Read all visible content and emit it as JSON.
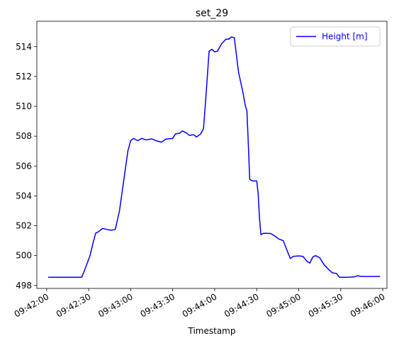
{
  "chart_data": {
    "type": "line",
    "title": "set_29",
    "xlabel": "Timestamp",
    "ylabel": "",
    "x_axis_type": "time",
    "xlim": [
      "09:41:53",
      "09:46:03"
    ],
    "ylim": [
      497.8,
      515.7
    ],
    "x_ticks": [
      "09:42:00",
      "09:42:30",
      "09:43:00",
      "09:43:30",
      "09:44:00",
      "09:44:30",
      "09:45:00",
      "09:45:30",
      "09:46:00"
    ],
    "y_ticks": [
      498,
      500,
      502,
      504,
      506,
      508,
      510,
      512,
      514
    ],
    "grid": false,
    "legend": {
      "placement": "top-right",
      "entries": [
        "Height [m]"
      ]
    },
    "series": [
      {
        "name": "Height [m]",
        "color": "#0000ff",
        "points": [
          [
            "09:42:01",
            498.55
          ],
          [
            "09:42:10",
            498.55
          ],
          [
            "09:42:20",
            498.55
          ],
          [
            "09:42:25",
            498.55
          ],
          [
            "09:42:27",
            499.0
          ],
          [
            "09:42:31",
            500.0
          ],
          [
            "09:42:33",
            500.8
          ],
          [
            "09:42:35",
            501.5
          ],
          [
            "09:42:37",
            501.6
          ],
          [
            "09:42:40",
            501.82
          ],
          [
            "09:42:43",
            501.75
          ],
          [
            "09:42:46",
            501.7
          ],
          [
            "09:42:49",
            501.75
          ],
          [
            "09:42:52",
            503.0
          ],
          [
            "09:42:55",
            505.0
          ],
          [
            "09:42:58",
            507.0
          ],
          [
            "09:43:00",
            507.7
          ],
          [
            "09:43:02",
            507.85
          ],
          [
            "09:43:05",
            507.7
          ],
          [
            "09:43:08",
            507.85
          ],
          [
            "09:43:11",
            507.75
          ],
          [
            "09:43:15",
            507.82
          ],
          [
            "09:43:18",
            507.7
          ],
          [
            "09:43:22",
            507.6
          ],
          [
            "09:43:25",
            507.8
          ],
          [
            "09:43:30",
            507.85
          ],
          [
            "09:43:32",
            508.15
          ],
          [
            "09:43:35",
            508.2
          ],
          [
            "09:43:37",
            508.35
          ],
          [
            "09:43:40",
            508.2
          ],
          [
            "09:43:42",
            508.05
          ],
          [
            "09:43:45",
            508.1
          ],
          [
            "09:43:47",
            507.95
          ],
          [
            "09:43:50",
            508.15
          ],
          [
            "09:43:52",
            508.5
          ],
          [
            "09:43:54",
            511.0
          ],
          [
            "09:43:56",
            513.7
          ],
          [
            "09:43:58",
            513.82
          ],
          [
            "09:44:00",
            513.65
          ],
          [
            "09:44:02",
            513.7
          ],
          [
            "09:44:05",
            514.2
          ],
          [
            "09:44:08",
            514.5
          ],
          [
            "09:44:10",
            514.5
          ],
          [
            "09:44:12",
            514.65
          ],
          [
            "09:44:14",
            514.6
          ],
          [
            "09:44:17",
            512.3
          ],
          [
            "09:44:20",
            511.0
          ],
          [
            "09:44:22",
            510.0
          ],
          [
            "09:44:23",
            509.7
          ],
          [
            "09:44:24",
            507.5
          ],
          [
            "09:44:25",
            505.1
          ],
          [
            "09:44:27",
            505.0
          ],
          [
            "09:44:30",
            505.0
          ],
          [
            "09:44:31",
            504.2
          ],
          [
            "09:44:32",
            502.5
          ],
          [
            "09:44:33",
            501.4
          ],
          [
            "09:44:35",
            501.5
          ],
          [
            "09:44:40",
            501.48
          ],
          [
            "09:44:43",
            501.3
          ],
          [
            "09:44:46",
            501.1
          ],
          [
            "09:44:49",
            501.0
          ],
          [
            "09:44:51",
            500.5
          ],
          [
            "09:44:54",
            499.8
          ],
          [
            "09:44:56",
            499.95
          ],
          [
            "09:45:00",
            499.98
          ],
          [
            "09:45:03",
            499.95
          ],
          [
            "09:45:06",
            499.6
          ],
          [
            "09:45:08",
            499.5
          ],
          [
            "09:45:10",
            499.9
          ],
          [
            "09:45:12",
            500.0
          ],
          [
            "09:45:15",
            499.85
          ],
          [
            "09:45:18",
            499.4
          ],
          [
            "09:45:21",
            499.1
          ],
          [
            "09:45:24",
            498.85
          ],
          [
            "09:45:27",
            498.8
          ],
          [
            "09:45:29",
            498.55
          ],
          [
            "09:45:35",
            498.55
          ],
          [
            "09:45:40",
            498.58
          ],
          [
            "09:45:42",
            498.65
          ],
          [
            "09:45:45",
            498.6
          ],
          [
            "09:45:50",
            498.6
          ],
          [
            "09:45:55",
            498.6
          ],
          [
            "09:45:58",
            498.6
          ]
        ]
      }
    ]
  }
}
